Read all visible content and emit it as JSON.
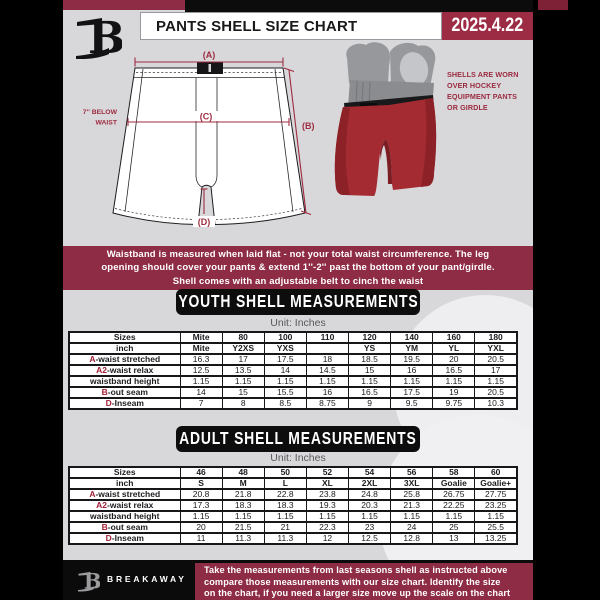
{
  "header": {
    "title": "PANTS SHELL SIZE CHART",
    "date": "2025.4.22"
  },
  "diagram": {
    "labels": {
      "a": "(A)",
      "b": "(B)",
      "c": "(C)",
      "d": "(D)"
    },
    "waist_note": [
      "7'' BELOW",
      "WAIST"
    ],
    "shell_note": [
      "SHELLS ARE WORN",
      "OVER HOCKEY",
      "EQUIPMENT PANTS",
      "OR GIRDLE"
    ]
  },
  "banner": {
    "lines": [
      "Waistband is measured when laid flat - not your total waist circumference. The leg",
      "opening should cover your pants & extend 1''-2'' past the bottom of your pant/girdle.",
      "Shell comes with an adjustable belt to cinch the waist"
    ]
  },
  "youth": {
    "heading": "YOUTH SHELL MEASUREMENTS",
    "unit": "Unit: Inches",
    "table": {
      "header": [
        "Sizes",
        "Mite",
        "80",
        "100",
        "110",
        "120",
        "140",
        "160",
        "180"
      ],
      "subheader": [
        "inch",
        "Mite",
        "Y2XS",
        "YXS",
        "",
        "YS",
        "YM",
        "YL",
        "YXL"
      ],
      "rows": [
        {
          "prefix": "A",
          "label": "-waist stretched",
          "values": [
            "16.3",
            "17",
            "17.5",
            "18",
            "18.5",
            "19.5",
            "20",
            "20.5"
          ]
        },
        {
          "prefix": "A2",
          "label": "-waist relax",
          "values": [
            "12.5",
            "13.5",
            "14",
            "14.5",
            "15",
            "16",
            "16.5",
            "17"
          ]
        },
        {
          "prefix": "",
          "label": "waistband height",
          "values": [
            "1.15",
            "1.15",
            "1.15",
            "1.15",
            "1.15",
            "1.15",
            "1.15",
            "1.15"
          ]
        },
        {
          "prefix": "B",
          "label": "-out seam",
          "values": [
            "14",
            "15",
            "15.5",
            "16",
            "16.5",
            "17.5",
            "19",
            "20.5"
          ]
        },
        {
          "prefix": "D",
          "label": "-Inseam",
          "values": [
            "7",
            "8",
            "8.5",
            "8.75",
            "9",
            "9.5",
            "9.75",
            "10.3"
          ]
        }
      ]
    }
  },
  "adult": {
    "heading": "ADULT SHELL MEASUREMENTS",
    "unit": "Unit: Inches",
    "table": {
      "header": [
        "Sizes",
        "46",
        "48",
        "50",
        "52",
        "54",
        "56",
        "58",
        "60"
      ],
      "subheader": [
        "inch",
        "S",
        "M",
        "L",
        "XL",
        "2XL",
        "3XL",
        "Goalie",
        "Goalie+"
      ],
      "rows": [
        {
          "prefix": "A",
          "label": "-waist stretched",
          "values": [
            "20.8",
            "21.8",
            "22.8",
            "23.8",
            "24.8",
            "25.8",
            "26.75",
            "27.75"
          ]
        },
        {
          "prefix": "A2",
          "label": "-waist relax",
          "values": [
            "17.3",
            "18.3",
            "18.3",
            "19.3",
            "20.3",
            "21.3",
            "22.25",
            "23.25"
          ]
        },
        {
          "prefix": "",
          "label": "waistband height",
          "values": [
            "1.15",
            "1.15",
            "1.15",
            "1.15",
            "1.15",
            "1.15",
            "1.15",
            "1.15"
          ]
        },
        {
          "prefix": "B",
          "label": "-out seam",
          "values": [
            "20",
            "21.5",
            "21",
            "22.3",
            "23",
            "24",
            "25",
            "25.5"
          ]
        },
        {
          "prefix": "D",
          "label": "-Inseam",
          "values": [
            "11",
            "11.3",
            "11.3",
            "12",
            "12.5",
            "12.8",
            "13",
            "13.25"
          ]
        }
      ]
    }
  },
  "footer": {
    "brand": "BREAKAWAY",
    "lines": [
      "Take the measurements from last seasons shell as instructed above",
      "compare those measurements  with our size chart. Identify the size",
      "on the chart, if you need a larger size move up the scale on the chart"
    ]
  },
  "colors": {
    "maroon": "#8e2b45",
    "accent": "#9e2b3f",
    "shell_red": "#a32b31",
    "black_bar": "#0b0b0c",
    "content_bg": "#d8d8db"
  }
}
